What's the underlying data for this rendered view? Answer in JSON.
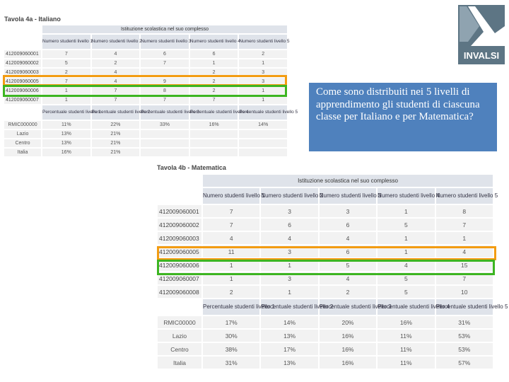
{
  "tavola_a": {
    "title": "Tavola 4a - Italiano",
    "banner": "Istituzione scolastica nel suo complesso",
    "count_headers": [
      "Numero studenti livello 1",
      "Numero studenti livello 2",
      "Numero studenti livello 3",
      "Numero studenti livello 4",
      "Numero studenti livello 5"
    ],
    "class_rows": [
      {
        "code": "412009060001",
        "values": [
          "7",
          "4",
          "6",
          "6",
          "2"
        ]
      },
      {
        "code": "412009060002",
        "values": [
          "5",
          "2",
          "7",
          "1",
          "1"
        ]
      },
      {
        "code": "412009060003",
        "values": [
          "2",
          "4",
          "",
          "2",
          "3"
        ]
      },
      {
        "code": "412009060005",
        "values": [
          "7",
          "4",
          "9",
          "2",
          "3"
        ]
      },
      {
        "code": "412009060006",
        "values": [
          "1",
          "7",
          "8",
          "2",
          "1"
        ]
      },
      {
        "code": "412009060007",
        "values": [
          "1",
          "7",
          "7",
          "7",
          "1"
        ]
      }
    ],
    "pct_headers": [
      "Percentuale studenti livello 1",
      "Percentuale studenti livello 2",
      "Percentuale studenti livello 3",
      "Percentuale studenti livello 4",
      "Percentuale studenti livello 5"
    ],
    "pct_rows": [
      {
        "label": "RMIC000000",
        "values": [
          "11%",
          "22%",
          "33%",
          "16%",
          "14%"
        ]
      },
      {
        "label": "Lazio",
        "values": [
          "13%",
          "21%",
          "",
          "",
          ""
        ]
      },
      {
        "label": "Centro",
        "values": [
          "13%",
          "21%",
          "",
          "",
          ""
        ]
      },
      {
        "label": "Italia",
        "values": [
          "16%",
          "21%",
          "",
          "",
          ""
        ]
      }
    ]
  },
  "tavola_b": {
    "title": "Tavola 4b - Matematica",
    "banner": "Istituzione scolastica nel suo complesso",
    "count_headers": [
      "Numero studenti livello 1",
      "Numero studenti livello 2",
      "Numero studenti livello 3",
      "Numero studenti livello 4",
      "Numero studenti livello 5"
    ],
    "class_rows": [
      {
        "code": "412009060001",
        "values": [
          "7",
          "3",
          "3",
          "1",
          "8"
        ]
      },
      {
        "code": "412009060002",
        "values": [
          "7",
          "6",
          "6",
          "5",
          "7"
        ]
      },
      {
        "code": "412009060003",
        "values": [
          "4",
          "4",
          "4",
          "1",
          "1"
        ]
      },
      {
        "code": "412009060005",
        "values": [
          "11",
          "3",
          "6",
          "1",
          "4"
        ]
      },
      {
        "code": "412009060006",
        "values": [
          "1",
          "1",
          "5",
          "4",
          "15"
        ]
      },
      {
        "code": "412009060007",
        "values": [
          "1",
          "3",
          "4",
          "5",
          "7"
        ]
      },
      {
        "code": "412009060008",
        "values": [
          "2",
          "1",
          "2",
          "5",
          "10"
        ]
      }
    ],
    "pct_headers": [
      "Percentuale studenti livello 1",
      "Percentuale studenti livello 2",
      "Percentuale studenti livello 3",
      "Percentuale studenti livello 4",
      "Percentuale studenti livello 5"
    ],
    "pct_rows": [
      {
        "label": "RMIC00000",
        "values": [
          "17%",
          "14%",
          "20%",
          "16%",
          "31%"
        ]
      },
      {
        "label": "Lazio",
        "values": [
          "30%",
          "13%",
          "16%",
          "11%",
          "53%"
        ]
      },
      {
        "label": "Centro",
        "values": [
          "38%",
          "17%",
          "16%",
          "11%",
          "53%"
        ]
      },
      {
        "label": "Italia",
        "values": [
          "31%",
          "13%",
          "16%",
          "11%",
          "57%"
        ]
      }
    ]
  },
  "callout": {
    "text": "Come sono distribuiti nei 5 livelli di apprendimento gli studenti di ciascuna classe per Italiano e per Matematica?"
  },
  "logo": {
    "text": "INVALSI"
  },
  "colors": {
    "orange_highlight": "#f39c12",
    "green_highlight": "#3cb521",
    "callout_bg": "#4f81bd",
    "logo_bg": "#5d7584"
  }
}
